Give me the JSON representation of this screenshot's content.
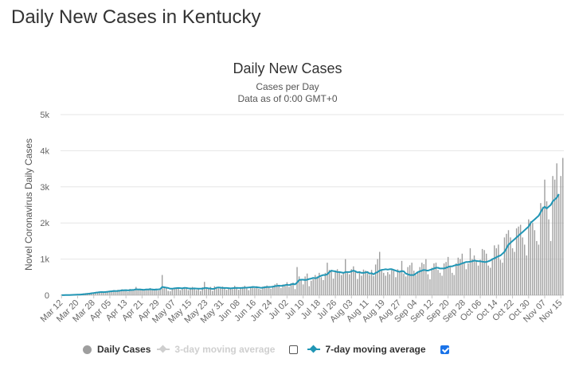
{
  "page": {
    "heading": "Daily New Cases in Kentucky"
  },
  "legend": {
    "daily_cases": "Daily Cases",
    "avg3": "3-day moving average",
    "avg7": "7-day moving average",
    "avg3_checked": false,
    "avg7_checked": true
  },
  "colors": {
    "bars": "#9e9e9e",
    "avg7": "#2196b5",
    "avg3": "#cfcfcf",
    "grid": "#e6e6e6"
  },
  "chart_data": {
    "type": "bar",
    "title": "Daily New Cases",
    "subtitle": "Cases per Day",
    "subtitle2": "Data as of 0:00 GMT+0",
    "ylabel": "Novel Coronavirus Daily Cases",
    "xlabel": "",
    "ylim": [
      0,
      5000
    ],
    "yticks": [
      {
        "value": 0,
        "label": "0"
      },
      {
        "value": 1000,
        "label": "1k"
      },
      {
        "value": 2000,
        "label": "2k"
      },
      {
        "value": 3000,
        "label": "3k"
      },
      {
        "value": 4000,
        "label": "4k"
      },
      {
        "value": 5000,
        "label": "5k"
      }
    ],
    "start_date": "2020-03-12",
    "x_tick_labels": [
      "Mar 12",
      "Mar 20",
      "Mar 28",
      "Apr 05",
      "Apr 13",
      "Apr 21",
      "Apr 29",
      "May 07",
      "May 15",
      "May 23",
      "May 31",
      "Jun 08",
      "Jun 16",
      "Jun 24",
      "Jul 02",
      "Jul 10",
      "Jul 18",
      "Jul 26",
      "Aug 03",
      "Aug 11",
      "Aug 19",
      "Aug 27",
      "Sep 04",
      "Sep 12",
      "Sep 20",
      "Sep 28",
      "Oct 06",
      "Oct 14",
      "Oct 22",
      "Oct 30",
      "Nov 07",
      "Nov 15"
    ],
    "grid": true,
    "legend_position": "bottom",
    "series": [
      {
        "name": "Daily Cases",
        "type": "bar",
        "values": [
          2,
          4,
          6,
          8,
          10,
          15,
          20,
          25,
          28,
          35,
          42,
          50,
          58,
          60,
          68,
          75,
          80,
          90,
          95,
          88,
          100,
          70,
          110,
          118,
          122,
          128,
          140,
          95,
          150,
          128,
          165,
          135,
          155,
          100,
          175,
          160,
          140,
          230,
          168,
          180,
          145,
          138,
          165,
          150,
          200,
          142,
          160,
          180,
          130,
          170,
          560,
          200,
          190,
          120,
          110,
          165,
          200,
          185,
          210,
          140,
          200,
          220,
          180,
          140,
          210,
          230,
          165,
          145,
          185,
          120,
          220,
          370,
          180,
          170,
          230,
          120,
          250,
          200,
          185,
          200,
          240,
          190,
          150,
          180,
          195,
          170,
          260,
          185,
          150,
          220,
          230,
          260,
          185,
          140,
          230,
          250,
          200,
          250,
          180,
          160,
          240,
          250,
          270,
          220,
          180,
          260,
          300,
          330,
          250,
          200,
          300,
          300,
          360,
          230,
          330,
          350,
          170,
          780,
          520,
          450,
          300,
          520,
          600,
          250,
          400,
          450,
          560,
          520,
          620,
          500,
          420,
          620,
          900,
          700,
          680,
          460,
          640,
          720,
          650,
          560,
          610,
          1000,
          620,
          580,
          720,
          800,
          640,
          450,
          620,
          540,
          710,
          680,
          610,
          560,
          700,
          530,
          850,
          1000,
          1200,
          720,
          620,
          540,
          640,
          580,
          700,
          680,
          500,
          720,
          660,
          950,
          600,
          520,
          780,
          830,
          900,
          680,
          560,
          620,
          780,
          900,
          860,
          1000,
          580,
          440,
          760,
          880,
          900,
          700,
          620,
          540,
          880,
          920,
          1060,
          780,
          620,
          560,
          880,
          1040,
          1000,
          1150,
          900,
          720,
          880,
          1300,
          1000,
          1100,
          960,
          820,
          980,
          1280,
          1250,
          1150,
          820,
          760,
          980,
          1380,
          1300,
          1400,
          980,
          900,
          1600,
          1700,
          1800,
          1600,
          1300,
          1200,
          1850,
          1900,
          1950,
          1600,
          1400,
          1100,
          2100,
          2050,
          2000,
          1800,
          1500,
          1400,
          2550,
          2450,
          3200,
          2600,
          2100,
          1500,
          3300,
          3200,
          3650,
          2800,
          3300,
          3800
        ]
      },
      {
        "name": "7-day moving average",
        "type": "line",
        "values": [
          2,
          3,
          4,
          5,
          6,
          8,
          10,
          13,
          15,
          18,
          22,
          28,
          32,
          40,
          45,
          55,
          62,
          70,
          78,
          85,
          88,
          85,
          90,
          98,
          105,
          110,
          118,
          115,
          120,
          125,
          135,
          138,
          140,
          135,
          140,
          145,
          150,
          165,
          160,
          158,
          155,
          150,
          160,
          160,
          165,
          160,
          155,
          160,
          160,
          170,
          230,
          220,
          210,
          200,
          180,
          180,
          190,
          195,
          200,
          195,
          190,
          205,
          200,
          190,
          185,
          185,
          190,
          185,
          180,
          180,
          180,
          200,
          200,
          190,
          185,
          175,
          180,
          210,
          215,
          210,
          200,
          200,
          200,
          195,
          190,
          195,
          200,
          205,
          200,
          200,
          205,
          210,
          210,
          215,
          220,
          230,
          225,
          220,
          215,
          205,
          210,
          220,
          225,
          230,
          230,
          235,
          250,
          260,
          265,
          260,
          265,
          280,
          290,
          280,
          300,
          310,
          300,
          350,
          420,
          430,
          430,
          420,
          430,
          450,
          460,
          480,
          470,
          480,
          520,
          540,
          560,
          560,
          580,
          640,
          680,
          670,
          660,
          640,
          640,
          630,
          620,
          640,
          640,
          640,
          660,
          680,
          660,
          630,
          640,
          620,
          620,
          630,
          640,
          600,
          610,
          580,
          620,
          640,
          680,
          700,
          710,
          720,
          710,
          720,
          720,
          700,
          680,
          660,
          650,
          670,
          660,
          600,
          580,
          560,
          560,
          560,
          600,
          640,
          660,
          680,
          700,
          690,
          680,
          700,
          720,
          740,
          760,
          760,
          740,
          740,
          740,
          760,
          780,
          800,
          800,
          820,
          840,
          840,
          860,
          880,
          900,
          920,
          920,
          930,
          940,
          960,
          950,
          940,
          940,
          930,
          920,
          920,
          940,
          960,
          1000,
          1020,
          1050,
          1080,
          1100,
          1150,
          1200,
          1300,
          1400,
          1450,
          1500,
          1550,
          1600,
          1650,
          1700,
          1750,
          1800,
          1850,
          1900,
          2000,
          2050,
          2100,
          2150,
          2200,
          2300,
          2400,
          2450,
          2400,
          2450,
          2500,
          2600,
          2650,
          2700,
          2800
        ]
      }
    ]
  }
}
